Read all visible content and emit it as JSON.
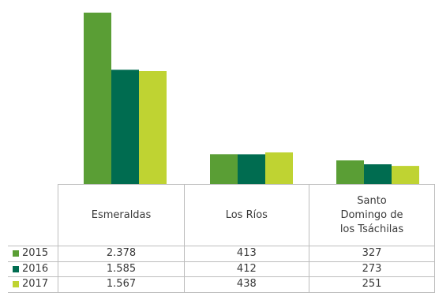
{
  "chart_data": {
    "type": "bar",
    "title": "",
    "xlabel": "",
    "ylabel": "",
    "categories": [
      "Esmeraldas",
      "Los Ríos",
      "Santo Domingo de los Tsáchilas"
    ],
    "category_display": [
      "Esmeraldas",
      "Los Ríos",
      "Santo\nDomingo de\nlos Tsáchilas"
    ],
    "series": [
      {
        "name": "2015",
        "values": [
          2378,
          413,
          327
        ],
        "labels": [
          "2.378",
          "413",
          "327"
        ],
        "color": "#5a9e35"
      },
      {
        "name": "2016",
        "values": [
          1585,
          412,
          273
        ],
        "labels": [
          "1.585",
          "412",
          "273"
        ],
        "color": "#006c50"
      },
      {
        "name": "2017",
        "values": [
          1567,
          438,
          251
        ],
        "labels": [
          "1.567",
          "438",
          "251"
        ],
        "color": "#bfd332"
      }
    ],
    "ylim": [
      0,
      2378
    ],
    "grid": false,
    "legend": "left-of-table"
  }
}
